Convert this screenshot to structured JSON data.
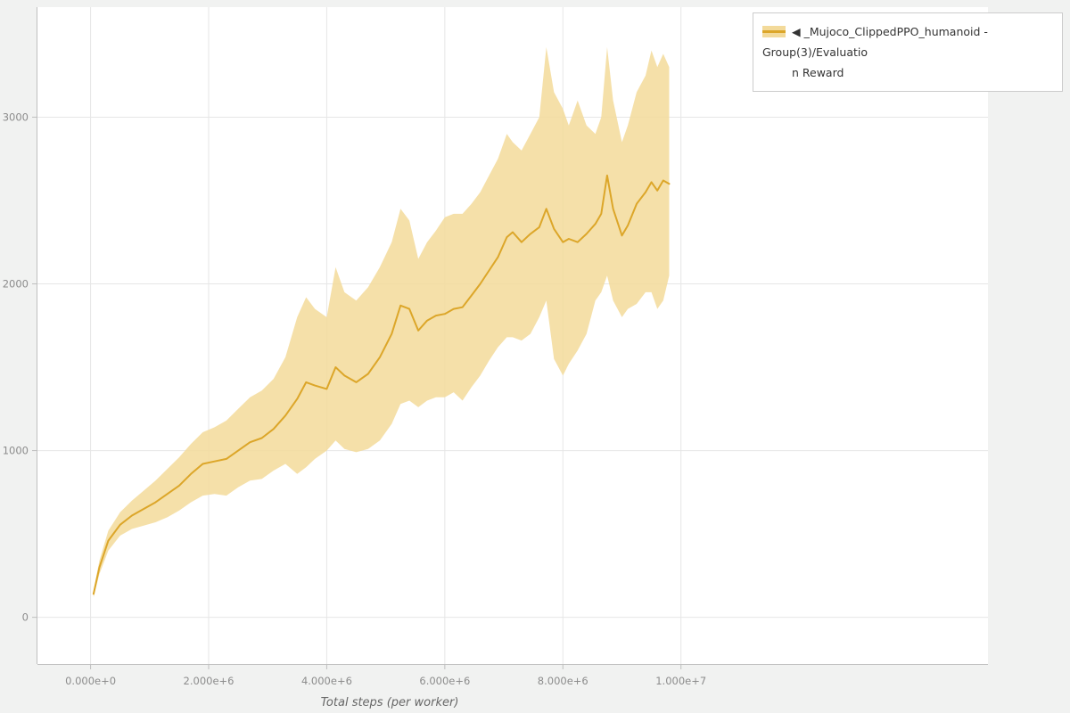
{
  "page": {
    "background": "#f1f2f1"
  },
  "legend": {
    "line1": "◀ _Mujoco_ClippedPPO_humanoid - Group(3)/Evaluatio",
    "line2": "n Reward"
  },
  "chart_data": {
    "type": "line",
    "title": "",
    "xlabel": "Total steps (per worker)",
    "ylabel": "",
    "series": [
      {
        "name": "_Mujoco_ClippedPPO_humanoid - Group(3)/Evaluation Reward",
        "style": "mean line with confidence band"
      }
    ],
    "x_unit": 1000000,
    "x_ticks": {
      "values": [
        0,
        2,
        4,
        6,
        8,
        10
      ],
      "labels": [
        "0.000e+0",
        "2.000e+6",
        "4.000e+6",
        "6.000e+6",
        "8.000e+6",
        "1.000e+7"
      ]
    },
    "y_ticks": {
      "values": [
        0,
        1000,
        2000,
        3000
      ],
      "labels": [
        "0",
        "1000",
        "2000",
        "3000"
      ]
    },
    "xlim": [
      -0.9,
      15.2
    ],
    "ylim": [
      -280,
      3660
    ],
    "grid": true,
    "legend_position": "top-right-outside",
    "colors": {
      "line": "#dca629",
      "band": "#f3da9a",
      "grid": "#e6e6e6",
      "axis": "#bfbfbf",
      "tick_text": "#8c8c8c",
      "label_text": "#666666",
      "plot_bg": "#ffffff"
    },
    "x": [
      0.05,
      0.15,
      0.3,
      0.5,
      0.7,
      0.9,
      1.1,
      1.3,
      1.5,
      1.7,
      1.9,
      2.1,
      2.3,
      2.5,
      2.7,
      2.9,
      3.1,
      3.3,
      3.5,
      3.65,
      3.8,
      4.0,
      4.15,
      4.3,
      4.5,
      4.7,
      4.9,
      5.1,
      5.25,
      5.4,
      5.55,
      5.7,
      5.85,
      6.0,
      6.15,
      6.3,
      6.45,
      6.6,
      6.75,
      6.9,
      7.05,
      7.15,
      7.3,
      7.45,
      7.6,
      7.72,
      7.85,
      8.0,
      8.1,
      8.25,
      8.4,
      8.55,
      8.65,
      8.75,
      8.85,
      9.0,
      9.1,
      9.25,
      9.4,
      9.5,
      9.6,
      9.7,
      9.8
    ],
    "mean": [
      140,
      300,
      460,
      555,
      610,
      650,
      690,
      740,
      790,
      860,
      920,
      935,
      950,
      1000,
      1050,
      1075,
      1130,
      1210,
      1310,
      1410,
      1390,
      1370,
      1500,
      1450,
      1410,
      1460,
      1560,
      1700,
      1870,
      1850,
      1720,
      1780,
      1810,
      1820,
      1850,
      1860,
      1930,
      2000,
      2080,
      2160,
      2280,
      2310,
      2250,
      2300,
      2340,
      2450,
      2330,
      2250,
      2270,
      2250,
      2300,
      2360,
      2420,
      2650,
      2450,
      2290,
      2350,
      2480,
      2550,
      2610,
      2560,
      2620,
      2600
    ],
    "lower": [
      120,
      260,
      400,
      490,
      530,
      550,
      570,
      600,
      640,
      690,
      730,
      740,
      730,
      780,
      820,
      830,
      880,
      920,
      860,
      900,
      950,
      1000,
      1060,
      1010,
      990,
      1010,
      1060,
      1160,
      1280,
      1300,
      1260,
      1300,
      1320,
      1320,
      1350,
      1300,
      1380,
      1450,
      1540,
      1620,
      1680,
      1680,
      1660,
      1700,
      1800,
      1900,
      1550,
      1450,
      1520,
      1600,
      1700,
      1900,
      1950,
      2050,
      1900,
      1800,
      1850,
      1880,
      1950,
      1950,
      1850,
      1900,
      2050
    ],
    "upper": [
      160,
      340,
      520,
      630,
      700,
      760,
      820,
      890,
      960,
      1040,
      1110,
      1140,
      1180,
      1250,
      1320,
      1360,
      1430,
      1560,
      1800,
      1920,
      1850,
      1800,
      2100,
      1950,
      1900,
      1980,
      2100,
      2250,
      2450,
      2380,
      2150,
      2250,
      2320,
      2400,
      2420,
      2420,
      2480,
      2550,
      2650,
      2750,
      2900,
      2850,
      2800,
      2900,
      3000,
      3420,
      3150,
      3050,
      2950,
      3100,
      2950,
      2900,
      3000,
      3420,
      3100,
      2850,
      2950,
      3150,
      3250,
      3400,
      3300,
      3380,
      3300
    ]
  }
}
